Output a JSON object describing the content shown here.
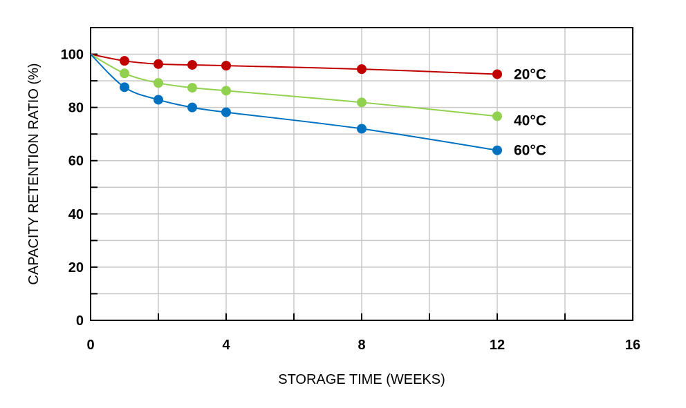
{
  "chart_data": {
    "type": "line",
    "title": "",
    "xlabel": "STORAGE TIME (WEEKS)",
    "ylabel": "CAPACITY RETENTION RATIO (%)",
    "xlim": [
      0,
      16
    ],
    "ylim": [
      0,
      110
    ],
    "x_ticks": [
      "0",
      "4",
      "8",
      "12",
      "16"
    ],
    "y_ticks": [
      "0",
      "20",
      "40",
      "60",
      "80",
      "100"
    ],
    "grid": true,
    "series": [
      {
        "name": "20°C",
        "color": "#c00000",
        "x": [
          0,
          1,
          2,
          3,
          4,
          8,
          12
        ],
        "y": [
          100,
          97.5,
          96.3,
          96.0,
          95.7,
          94.4,
          92.5
        ]
      },
      {
        "name": "40°C",
        "color": "#92d050",
        "x": [
          0,
          1,
          2,
          3,
          4,
          8,
          12
        ],
        "y": [
          100,
          92.8,
          89.2,
          87.4,
          86.3,
          81.9,
          76.7
        ]
      },
      {
        "name": "60°C",
        "color": "#0070c0",
        "x": [
          0,
          1,
          2,
          3,
          4,
          8,
          12
        ],
        "y": [
          100,
          87.6,
          82.9,
          80.0,
          78.2,
          72.0,
          63.9
        ]
      }
    ]
  }
}
